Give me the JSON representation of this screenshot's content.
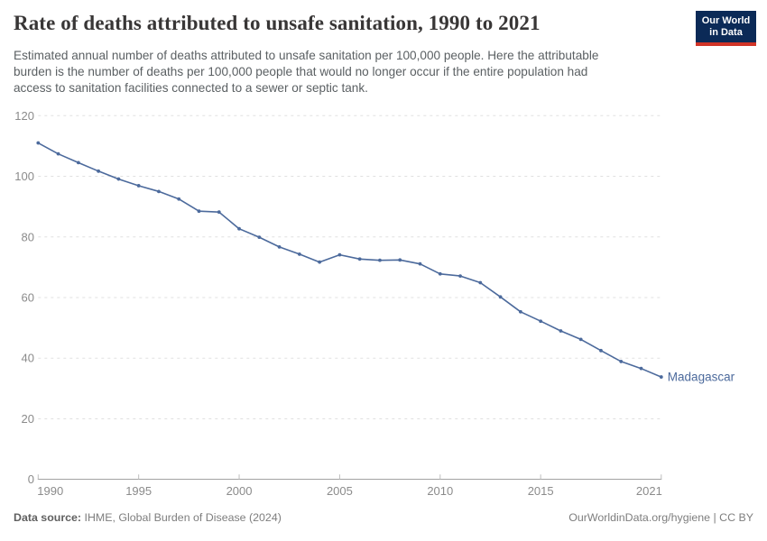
{
  "header": {
    "logo": {
      "line1": "Our World",
      "line2": "in Data",
      "bg_color": "#0b2a57",
      "accent_color": "#d13427"
    },
    "subtitle_lines": [
      "Estimated annual number of deaths attributed to unsafe sanitation per 100,000 people. Here the attributable",
      "burden is the number of deaths per 100,000 people that would no longer occur if the entire population had",
      "access to sanitation facilities connected to a sewer or septic tank."
    ]
  },
  "chart_data": {
    "type": "line",
    "title": "Rate of deaths attributed to unsafe sanitation, 1990 to 2021",
    "xlabel": "",
    "ylabel": "",
    "x": [
      1990,
      1991,
      1992,
      1993,
      1994,
      1995,
      1996,
      1997,
      1998,
      1999,
      2000,
      2001,
      2002,
      2003,
      2004,
      2005,
      2006,
      2007,
      2008,
      2009,
      2010,
      2011,
      2012,
      2013,
      2014,
      2015,
      2016,
      2017,
      2018,
      2019,
      2020,
      2021
    ],
    "series": [
      {
        "name": "Madagascar",
        "color": "#4C6A9C",
        "values": [
          111.0,
          107.4,
          104.5,
          101.7,
          99.1,
          96.9,
          95.0,
          92.5,
          88.5,
          88.2,
          82.7,
          79.9,
          76.7,
          74.3,
          71.7,
          74.1,
          72.7,
          72.3,
          72.4,
          71.1,
          67.8,
          67.1,
          64.9,
          60.2,
          55.3,
          52.2,
          49.0,
          46.2,
          42.5,
          38.9,
          36.6,
          33.8
        ]
      }
    ],
    "xlim": [
      1990,
      2021
    ],
    "ylim": [
      0,
      120
    ],
    "x_ticks": [
      1990,
      1995,
      2000,
      2005,
      2010,
      2015,
      2021
    ],
    "y_ticks": [
      0,
      20,
      40,
      60,
      80,
      100,
      120
    ],
    "grid": "horizontal-dashed",
    "legend": "end-of-line-label",
    "colors": {
      "gridline": "#e0e0e0",
      "axis_line": "#a3a3a3",
      "tick": "#bdbdbd",
      "tick_label": "#8b8b8b"
    }
  },
  "footer": {
    "datasource_label": "Data source:",
    "datasource_value": "IHME, Global Burden of Disease (2024)",
    "right_text": "OurWorldinData.org/hygiene | CC BY"
  }
}
